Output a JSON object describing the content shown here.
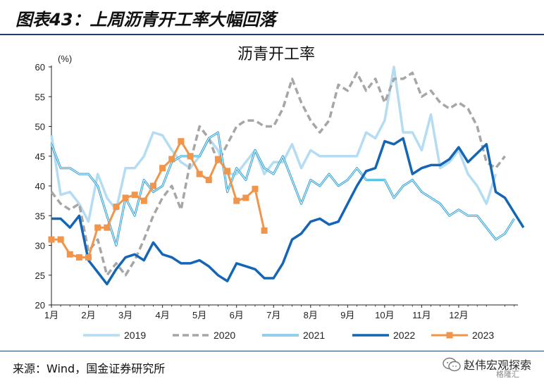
{
  "figure": {
    "title": "图表43：上周沥青开工率大幅回落",
    "source": "来源：Wind，国金证券研究所",
    "watermark": "赵伟宏观探索",
    "watermark_sub": "格隆汇"
  },
  "chart_data": {
    "type": "line",
    "title": "沥青开工率",
    "unit_label": "(%)",
    "ylim": [
      20,
      60
    ],
    "yticks": [
      20,
      25,
      30,
      35,
      40,
      45,
      50,
      55,
      60
    ],
    "xlim": [
      1,
      13.6
    ],
    "xticks": [
      {
        "label": "1月",
        "x": 1
      },
      {
        "label": "2月",
        "x": 2
      },
      {
        "label": "3月",
        "x": 3
      },
      {
        "label": "4月",
        "x": 4
      },
      {
        "label": "5月",
        "x": 5
      },
      {
        "label": "6月",
        "x": 6
      },
      {
        "label": "7月",
        "x": 7
      },
      {
        "label": "8月",
        "x": 8
      },
      {
        "label": "9月",
        "x": 9
      },
      {
        "label": "10月",
        "x": 10
      },
      {
        "label": "11月",
        "x": 11
      },
      {
        "label": "12月",
        "x": 12
      }
    ],
    "grid": false,
    "legend_position": "bottom",
    "series": [
      {
        "name": "2019",
        "color": "#b4dcf2",
        "style": "light",
        "points": [
          [
            1,
            48.5
          ],
          [
            1.25,
            38.5
          ],
          [
            1.5,
            39
          ],
          [
            1.75,
            37
          ],
          [
            2,
            34
          ],
          [
            2.25,
            42
          ],
          [
            2.5,
            38
          ],
          [
            2.75,
            36
          ],
          [
            3,
            43
          ],
          [
            3.25,
            43
          ],
          [
            3.5,
            45
          ],
          [
            3.75,
            49
          ],
          [
            4,
            48.5
          ],
          [
            4.25,
            46
          ],
          [
            4.5,
            44
          ],
          [
            4.75,
            43
          ],
          [
            5,
            45
          ],
          [
            5.25,
            48
          ],
          [
            5.5,
            46
          ],
          [
            5.75,
            42
          ],
          [
            6,
            42
          ],
          [
            6.25,
            44
          ],
          [
            6.5,
            46
          ],
          [
            6.75,
            42
          ],
          [
            7,
            44
          ],
          [
            7.25,
            44
          ],
          [
            7.5,
            47
          ],
          [
            7.75,
            43
          ],
          [
            8,
            46
          ],
          [
            8.25,
            45
          ],
          [
            8.5,
            45
          ],
          [
            8.75,
            45
          ],
          [
            9,
            45
          ],
          [
            9.25,
            45
          ],
          [
            9.5,
            49
          ],
          [
            9.75,
            48
          ],
          [
            10,
            51
          ],
          [
            10.25,
            60
          ],
          [
            10.5,
            49
          ],
          [
            10.75,
            49
          ],
          [
            11,
            46
          ],
          [
            11.25,
            52
          ],
          [
            11.5,
            43
          ],
          [
            11.75,
            44
          ],
          [
            12,
            46
          ],
          [
            12.25,
            42
          ],
          [
            12.5,
            40
          ],
          [
            12.75,
            37
          ],
          [
            13,
            42
          ]
        ]
      },
      {
        "name": "2020",
        "color": "#a6a6a6",
        "style": "dashed",
        "points": [
          [
            1,
            39
          ],
          [
            1.25,
            37
          ],
          [
            1.5,
            36
          ],
          [
            1.75,
            37
          ],
          [
            2,
            29
          ],
          [
            2.25,
            31
          ],
          [
            2.5,
            25
          ],
          [
            2.75,
            27
          ],
          [
            3,
            25
          ],
          [
            3.25,
            27.5
          ],
          [
            3.5,
            31
          ],
          [
            3.75,
            35
          ],
          [
            4,
            38
          ],
          [
            4.25,
            40
          ],
          [
            4.5,
            36
          ],
          [
            4.75,
            44
          ],
          [
            5,
            50
          ],
          [
            5.25,
            48
          ],
          [
            5.5,
            44
          ],
          [
            5.75,
            47
          ],
          [
            6,
            50
          ],
          [
            6.25,
            51
          ],
          [
            6.5,
            51
          ],
          [
            6.75,
            50
          ],
          [
            7,
            50
          ],
          [
            7.25,
            53
          ],
          [
            7.5,
            58
          ],
          [
            7.75,
            54
          ],
          [
            8,
            51
          ],
          [
            8.25,
            49
          ],
          [
            8.5,
            51
          ],
          [
            8.75,
            57
          ],
          [
            9,
            56
          ],
          [
            9.25,
            59
          ],
          [
            9.5,
            56
          ],
          [
            9.75,
            58
          ],
          [
            10,
            54
          ],
          [
            10.25,
            58
          ],
          [
            10.5,
            58
          ],
          [
            10.75,
            59
          ],
          [
            11,
            55
          ],
          [
            11.25,
            56
          ],
          [
            11.5,
            54
          ],
          [
            11.75,
            53
          ],
          [
            12,
            54
          ],
          [
            12.25,
            53
          ],
          [
            12.5,
            50
          ],
          [
            12.75,
            44
          ],
          [
            13,
            43
          ],
          [
            13.25,
            45
          ]
        ]
      },
      {
        "name": "2021",
        "color": "#2a9fd6",
        "style": "double",
        "points": [
          [
            1,
            47
          ],
          [
            1.25,
            43
          ],
          [
            1.5,
            43
          ],
          [
            1.75,
            42
          ],
          [
            2,
            42
          ],
          [
            2.25,
            40
          ],
          [
            2.5,
            35
          ],
          [
            2.75,
            30
          ],
          [
            3,
            38
          ],
          [
            3.25,
            35
          ],
          [
            3.5,
            41
          ],
          [
            3.75,
            39
          ],
          [
            4,
            40
          ],
          [
            4.25,
            44
          ],
          [
            4.5,
            45
          ],
          [
            4.75,
            45
          ],
          [
            5,
            45
          ],
          [
            5.25,
            48
          ],
          [
            5.5,
            49
          ],
          [
            5.75,
            39
          ],
          [
            6,
            43
          ],
          [
            6.25,
            41
          ],
          [
            6.5,
            46
          ],
          [
            6.75,
            43
          ],
          [
            7,
            42
          ],
          [
            7.25,
            45
          ],
          [
            7.5,
            41
          ],
          [
            7.75,
            37
          ],
          [
            8,
            41
          ],
          [
            8.25,
            40
          ],
          [
            8.5,
            42
          ],
          [
            8.75,
            40
          ],
          [
            9,
            41
          ],
          [
            9.25,
            43
          ],
          [
            9.5,
            41
          ],
          [
            9.75,
            41
          ],
          [
            10,
            41
          ],
          [
            10.25,
            38
          ],
          [
            10.5,
            40
          ],
          [
            10.75,
            41
          ],
          [
            11,
            39
          ],
          [
            11.25,
            38
          ],
          [
            11.5,
            37
          ],
          [
            11.75,
            35
          ],
          [
            12,
            36
          ],
          [
            12.25,
            35
          ],
          [
            12.5,
            35
          ],
          [
            12.75,
            33
          ],
          [
            13,
            31
          ],
          [
            13.25,
            32
          ],
          [
            13.5,
            34.5
          ]
        ]
      },
      {
        "name": "2022",
        "color": "#1565b5",
        "style": "bold",
        "points": [
          [
            1,
            34.5
          ],
          [
            1.25,
            34.5
          ],
          [
            1.5,
            33
          ],
          [
            1.75,
            35
          ],
          [
            2,
            27.5
          ],
          [
            2.25,
            25.5
          ],
          [
            2.5,
            23.5
          ],
          [
            2.75,
            26
          ],
          [
            3,
            28
          ],
          [
            3.25,
            28.5
          ],
          [
            3.5,
            27.5
          ],
          [
            3.75,
            30.5
          ],
          [
            4,
            28.5
          ],
          [
            4.25,
            28
          ],
          [
            4.5,
            27
          ],
          [
            4.75,
            27
          ],
          [
            5,
            27.5
          ],
          [
            5.25,
            26.5
          ],
          [
            5.5,
            25
          ],
          [
            5.75,
            24
          ],
          [
            6,
            27
          ],
          [
            6.25,
            26.5
          ],
          [
            6.5,
            26
          ],
          [
            6.75,
            24.5
          ],
          [
            7,
            24.5
          ],
          [
            7.25,
            27
          ],
          [
            7.5,
            31
          ],
          [
            7.75,
            32
          ],
          [
            8,
            34
          ],
          [
            8.25,
            34.5
          ],
          [
            8.5,
            33.5
          ],
          [
            8.75,
            34
          ],
          [
            9,
            37
          ],
          [
            9.25,
            40
          ],
          [
            9.5,
            42.5
          ],
          [
            9.75,
            43
          ],
          [
            10,
            47.5
          ],
          [
            10.25,
            47
          ],
          [
            10.5,
            48
          ],
          [
            10.75,
            42
          ],
          [
            11,
            43
          ],
          [
            11.25,
            43.5
          ],
          [
            11.5,
            43.5
          ],
          [
            11.75,
            44.5
          ],
          [
            12,
            46.5
          ],
          [
            12.25,
            44
          ],
          [
            12.5,
            45.5
          ],
          [
            12.75,
            47
          ],
          [
            13,
            39
          ],
          [
            13.25,
            38
          ],
          [
            13.5,
            35.5
          ],
          [
            13.75,
            33
          ]
        ]
      },
      {
        "name": "2023",
        "color": "#f0954a",
        "style": "marker",
        "points": [
          [
            1,
            31
          ],
          [
            1.25,
            31
          ],
          [
            1.5,
            28.5
          ],
          [
            1.75,
            28
          ],
          [
            2,
            28
          ],
          [
            2.25,
            33
          ],
          [
            2.5,
            33
          ],
          [
            2.75,
            36.5
          ],
          [
            3,
            38
          ],
          [
            3.25,
            38.5
          ],
          [
            3.5,
            37.5
          ],
          [
            3.75,
            40
          ],
          [
            4,
            43
          ],
          [
            4.25,
            44.5
          ],
          [
            4.5,
            47.5
          ],
          [
            4.75,
            45
          ],
          [
            5,
            42
          ],
          [
            5.25,
            41
          ],
          [
            5.5,
            44.5
          ],
          [
            5.75,
            42.5
          ],
          [
            6,
            37.5
          ],
          [
            6.25,
            38
          ],
          [
            6.5,
            39.5
          ],
          [
            6.75,
            32.5
          ]
        ]
      }
    ]
  }
}
